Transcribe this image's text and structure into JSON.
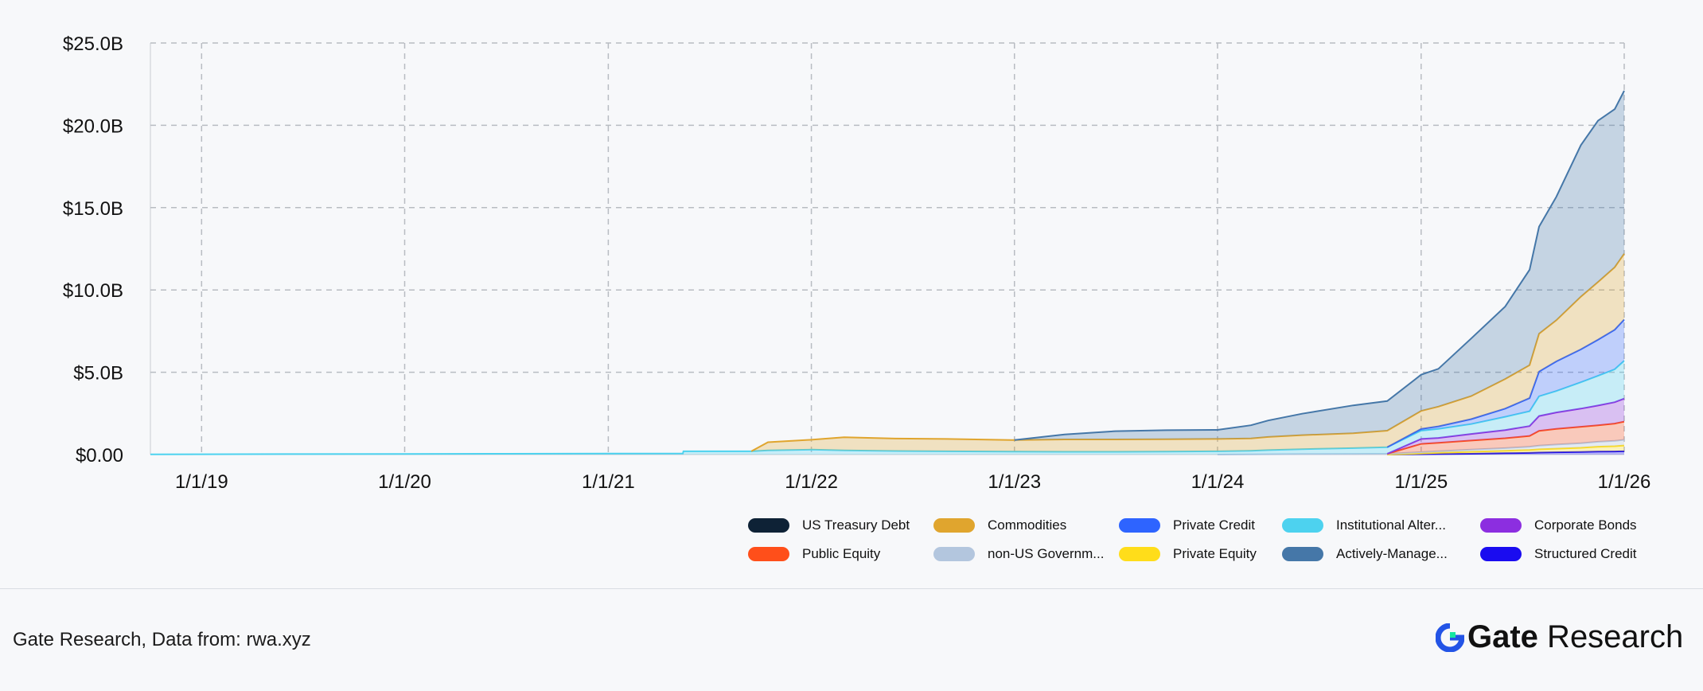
{
  "chart_data": {
    "type": "area",
    "stacked": true,
    "title": "",
    "xlabel": "",
    "ylabel": "",
    "x": [
      "2018-10-01",
      "2019-01-01",
      "2019-06-01",
      "2020-01-01",
      "2020-06-01",
      "2021-01-01",
      "2021-05-15",
      "2021-05-16",
      "2021-09-15",
      "2021-10-15",
      "2022-01-01",
      "2022-03-01",
      "2022-06-01",
      "2022-09-01",
      "2023-01-01",
      "2023-04-01",
      "2023-07-01",
      "2023-10-01",
      "2024-01-01",
      "2024-03-01",
      "2024-04-01",
      "2024-06-01",
      "2024-09-01",
      "2024-11-01",
      "2025-01-01",
      "2025-02-01",
      "2025-04-01",
      "2025-06-01",
      "2025-07-15",
      "2025-08-01",
      "2025-09-01",
      "2025-10-15",
      "2025-11-15",
      "2025-12-15",
      "2026-01-01"
    ],
    "x_ticks": [
      "1/1/19",
      "1/1/20",
      "1/1/21",
      "1/1/22",
      "1/1/23",
      "1/1/24",
      "1/1/25",
      "1/1/26"
    ],
    "x_tick_dates": [
      "2019-01-01",
      "2020-01-01",
      "2021-01-01",
      "2022-01-01",
      "2023-01-01",
      "2024-01-01",
      "2025-01-01",
      "2026-01-01"
    ],
    "xlim": [
      "2018-10-01",
      "2026-01-01"
    ],
    "y_ticks": [
      "$0.00",
      "$5.0B",
      "$10.0B",
      "$15.0B",
      "$20.0B",
      "$25.0B"
    ],
    "y_tick_values": [
      0,
      5,
      10,
      15,
      20,
      25
    ],
    "ylim": [
      0,
      25
    ],
    "y_unit": "B",
    "grid": true,
    "legend_position": "bottom-right",
    "series": [
      {
        "name": "US Treasury Debt",
        "color": "#0e2236",
        "values": [
          0,
          0,
          0,
          0,
          0,
          0,
          0,
          0,
          0,
          0,
          0,
          0,
          0,
          0,
          0,
          0,
          0,
          0,
          0,
          0,
          0,
          0,
          0,
          0,
          0,
          0,
          0,
          0,
          0,
          0,
          0,
          0,
          0,
          0,
          0
        ]
      },
      {
        "name": "Structured Credit",
        "color": "#1a0cf0",
        "values": [
          0,
          0,
          0,
          0,
          0,
          0,
          0,
          0,
          0,
          0,
          0,
          0,
          0,
          0,
          0,
          0,
          0,
          0,
          0,
          0,
          0,
          0,
          0,
          0,
          0.02,
          0.03,
          0.05,
          0.08,
          0.1,
          0.12,
          0.14,
          0.16,
          0.18,
          0.19,
          0.2
        ]
      },
      {
        "name": "Private Equity",
        "color": "#ffdd1a",
        "values": [
          0,
          0,
          0,
          0,
          0,
          0,
          0,
          0,
          0,
          0,
          0,
          0,
          0,
          0,
          0,
          0,
          0,
          0,
          0,
          0,
          0,
          0,
          0,
          0,
          0.05,
          0.08,
          0.12,
          0.15,
          0.18,
          0.2,
          0.22,
          0.25,
          0.3,
          0.32,
          0.35
        ]
      },
      {
        "name": "non-US Government Debt",
        "color": "#b3c6de",
        "values": [
          0,
          0,
          0,
          0,
          0,
          0,
          0,
          0,
          0,
          0,
          0,
          0,
          0,
          0,
          0,
          0,
          0,
          0,
          0,
          0.01,
          0.02,
          0.03,
          0.04,
          0.05,
          0.08,
          0.1,
          0.13,
          0.16,
          0.2,
          0.22,
          0.25,
          0.28,
          0.3,
          0.32,
          0.35
        ]
      },
      {
        "name": "Public Equity",
        "color": "#ff4f1a",
        "values": [
          0,
          0,
          0,
          0,
          0,
          0,
          0,
          0,
          0,
          0,
          0,
          0,
          0,
          0,
          0,
          0,
          0,
          0,
          0,
          0,
          0,
          0,
          0,
          0,
          0.5,
          0.5,
          0.55,
          0.6,
          0.65,
          0.9,
          0.95,
          1.0,
          1.0,
          1.05,
          1.1
        ]
      },
      {
        "name": "Corporate Bonds",
        "color": "#8c2ee0",
        "values": [
          0,
          0,
          0,
          0,
          0,
          0,
          0,
          0,
          0,
          0,
          0,
          0,
          0,
          0,
          0,
          0,
          0,
          0,
          0,
          0,
          0,
          0,
          0,
          0,
          0.3,
          0.3,
          0.4,
          0.5,
          0.6,
          0.9,
          1.0,
          1.1,
          1.2,
          1.3,
          1.4
        ]
      },
      {
        "name": "Institutional Alternative Funds",
        "color": "#4dd2ef",
        "values": [
          0.01,
          0.02,
          0.03,
          0.04,
          0.05,
          0.06,
          0.07,
          0.2,
          0.2,
          0.25,
          0.3,
          0.25,
          0.22,
          0.2,
          0.18,
          0.17,
          0.17,
          0.18,
          0.2,
          0.22,
          0.25,
          0.3,
          0.35,
          0.4,
          0.5,
          0.55,
          0.6,
          0.8,
          0.9,
          1.2,
          1.3,
          1.6,
          1.8,
          2.0,
          2.3
        ]
      },
      {
        "name": "Private Credit",
        "color": "#2e64ff",
        "values": [
          0,
          0,
          0,
          0,
          0,
          0,
          0,
          0,
          0,
          0,
          0,
          0,
          0,
          0,
          0,
          0,
          0,
          0,
          0,
          0,
          0,
          0,
          0,
          0,
          0.1,
          0.15,
          0.3,
          0.5,
          0.8,
          1.5,
          1.8,
          2.0,
          2.2,
          2.4,
          2.5
        ]
      },
      {
        "name": "Commodities",
        "color": "#e0a52e",
        "values": [
          0,
          0,
          0,
          0,
          0,
          0,
          0,
          0,
          0,
          0.5,
          0.6,
          0.8,
          0.75,
          0.75,
          0.7,
          0.75,
          0.75,
          0.75,
          0.75,
          0.75,
          0.8,
          0.85,
          0.9,
          1.0,
          1.1,
          1.2,
          1.4,
          1.8,
          2.0,
          2.3,
          2.5,
          3.2,
          3.5,
          3.8,
          4.0
        ]
      },
      {
        "name": "Actively-Managed Strategies",
        "color": "#4577a8",
        "values": [
          0,
          0,
          0,
          0,
          0,
          0,
          0,
          0,
          0,
          0,
          0,
          0,
          0,
          0,
          0,
          0.3,
          0.5,
          0.55,
          0.55,
          0.8,
          1.0,
          1.3,
          1.7,
          1.8,
          2.2,
          2.3,
          3.5,
          4.4,
          5.8,
          6.5,
          7.5,
          9.2,
          9.8,
          9.6,
          9.9
        ]
      }
    ]
  },
  "legend": [
    {
      "label": "US Treasury Debt",
      "color": "#0e2236"
    },
    {
      "label": "Commodities",
      "color": "#e0a52e"
    },
    {
      "label": "Private Credit",
      "color": "#2e64ff"
    },
    {
      "label": "Institutional Alter...",
      "color": "#4dd2ef"
    },
    {
      "label": "Corporate Bonds",
      "color": "#8c2ee0"
    },
    {
      "label": "Public Equity",
      "color": "#ff4f1a"
    },
    {
      "label": "non-US Governm...",
      "color": "#b3c6de"
    },
    {
      "label": "Private Equity",
      "color": "#ffdd1a"
    },
    {
      "label": "Actively-Manage...",
      "color": "#4577a8"
    },
    {
      "label": "Structured Credit",
      "color": "#1a0cf0"
    }
  ],
  "footer": {
    "source": "Gate Research, Data from: rwa.xyz",
    "brand_bold": "Gate",
    "brand_rest": " Research",
    "logo_icon": "gate-logo-icon",
    "logo_colors": [
      "#2354e6",
      "#17e6a1"
    ]
  }
}
